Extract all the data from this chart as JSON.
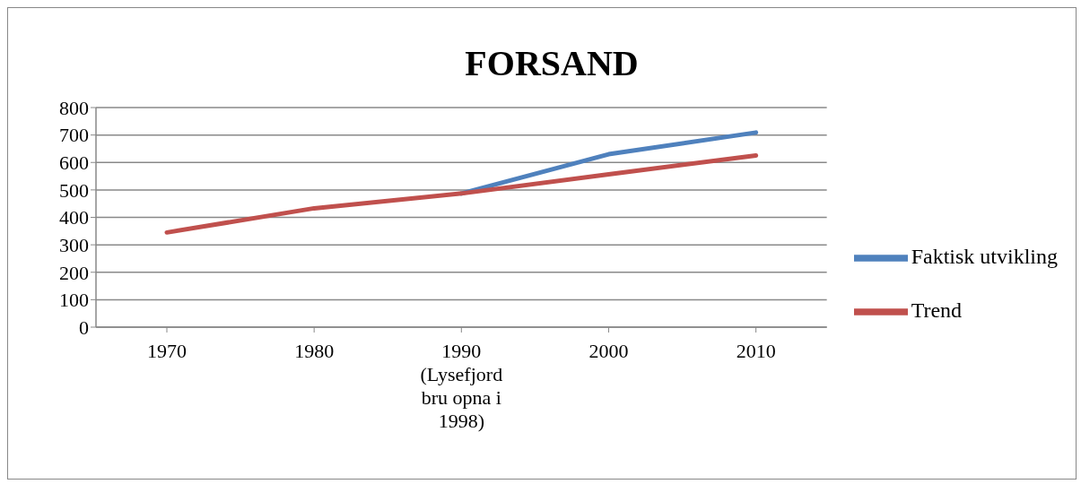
{
  "chart_data": {
    "type": "line",
    "title": "FORSAND",
    "categories": [
      "1970",
      "1980",
      "1990 (Lysefjord bru opna i 1998)",
      "2000",
      "2010"
    ],
    "series": [
      {
        "name": "Faktisk utvikling",
        "color": "#4f81bd",
        "values": [
          null,
          null,
          487,
          630,
          709
        ]
      },
      {
        "name": "Trend",
        "color": "#c0504d",
        "values": [
          345,
          433,
          487,
          557,
          625
        ]
      }
    ],
    "ylim": [
      0,
      800
    ],
    "yticks": [
      0,
      100,
      200,
      300,
      400,
      500,
      600,
      700,
      800
    ],
    "grid": "y",
    "legend": "right",
    "marker": "none"
  }
}
